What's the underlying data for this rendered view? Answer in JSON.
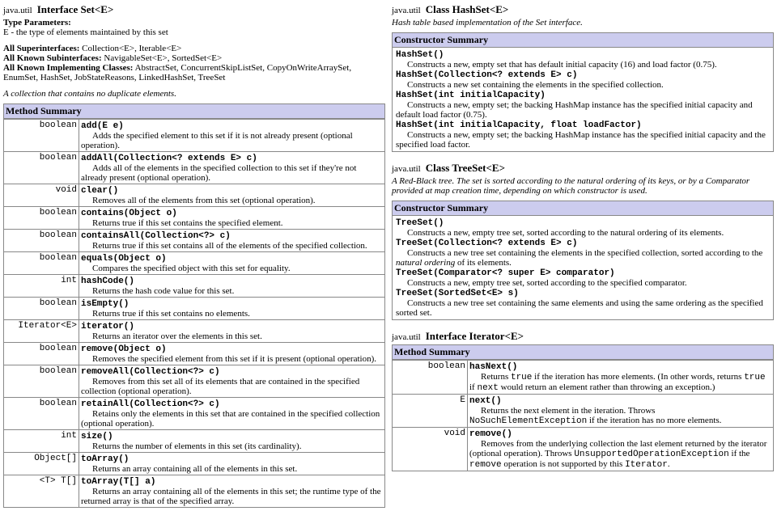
{
  "left": {
    "pkg": "java.util",
    "kind": "Interface",
    "name": "Set<E>",
    "typeParamsHead": "Type Parameters:",
    "typeParams": "E - the type of elements maintained by this set",
    "superHead": "All Superinterfaces:",
    "superVal": "Collection<E>, Iterable<E>",
    "subHead": "All Known Subinterfaces:",
    "subVal": "NavigableSet<E>, SortedSet<E>",
    "implHead": "All Known Implementing Classes:",
    "implVal": "AbstractSet, ConcurrentSkipListSet, CopyOnWriteArraySet, EnumSet, HashSet, JobStateReasons, LinkedHashSet, TreeSet",
    "desc": "A collection that contains no duplicate elements.",
    "methodTitle": "Method Summary",
    "methods": [
      {
        "ret": "boolean",
        "sig": "add(E e)",
        "desc": "Adds the specified element to this set if it is not already present (optional operation)."
      },
      {
        "ret": "boolean",
        "sig": "addAll(Collection<? extends E> c)",
        "desc": "Adds all of the elements in the specified collection to this set if they're not already present (optional operation)."
      },
      {
        "ret": "void",
        "sig": "clear()",
        "desc": "Removes all of the elements from this set (optional operation)."
      },
      {
        "ret": "boolean",
        "sig": "contains(Object o)",
        "desc": "Returns true if this set contains the specified element."
      },
      {
        "ret": "boolean",
        "sig": "containsAll(Collection<?> c)",
        "desc": "Returns true if this set contains all of the elements of the specified collection."
      },
      {
        "ret": "boolean",
        "sig": "equals(Object o)",
        "desc": "Compares the specified object with this set for equality."
      },
      {
        "ret": "int",
        "sig": "hashCode()",
        "desc": "Returns the hash code value for this set."
      },
      {
        "ret": "boolean",
        "sig": "isEmpty()",
        "desc": "Returns true if this set contains no elements."
      },
      {
        "ret": "Iterator<E>",
        "sig": "iterator()",
        "desc": "Returns an iterator over the elements in this set."
      },
      {
        "ret": "boolean",
        "sig": "remove(Object o)",
        "desc": "Removes the specified element from this set if it is present (optional operation)."
      },
      {
        "ret": "boolean",
        "sig": "removeAll(Collection<?> c)",
        "desc": "Removes from this set all of its elements that are contained in the specified collection (optional operation)."
      },
      {
        "ret": "boolean",
        "sig": "retainAll(Collection<?> c)",
        "desc": "Retains only the elements in this set that are contained in the specified collection (optional operation)."
      },
      {
        "ret": "int",
        "sig": "size()",
        "desc": "Returns the number of elements in this set (its cardinality)."
      },
      {
        "ret": "Object[]",
        "sig": "toArray()",
        "desc": "Returns an array containing all of the elements in this set."
      },
      {
        "ret": "<T> T[]",
        "sig": "toArray(T[] a)",
        "desc": "Returns an array containing all of the elements in this set; the runtime type of the returned array is that of the specified array."
      }
    ]
  },
  "hashset": {
    "pkg": "java.util",
    "kind": "Class",
    "name": "HashSet<E>",
    "desc": "Hash table based implementation of the Set interface.",
    "ctorTitle": "Constructor Summary",
    "ctors": [
      {
        "sig": "HashSet()",
        "desc": "Constructs a new, empty set that has default initial capacity (16) and load factor (0.75)."
      },
      {
        "sig": "HashSet(Collection<? extends E> c)",
        "desc": "Constructs a new set containing the elements in the specified collection."
      },
      {
        "sig": "HashSet(int initialCapacity)",
        "desc": "Constructs a new, empty set; the backing HashMap instance has the specified initial capacity and default load factor (0.75)."
      },
      {
        "sig": "HashSet(int initialCapacity, float loadFactor)",
        "desc": "Constructs a new, empty set; the backing HashMap instance has the specified initial capacity and the specified load factor."
      }
    ]
  },
  "treeset": {
    "pkg": "java.util",
    "kind": "Class",
    "name": "TreeSet<E>",
    "desc": "A Red-Black tree. The set is sorted according to the natural ordering of its keys, or by a Comparator provided at map creation time, depending on which constructor is used.",
    "ctorTitle": "Constructor Summary",
    "ctors": [
      {
        "sig": "TreeSet()",
        "desc": "Constructs a new, empty tree set, sorted according to the natural ordering of its elements."
      },
      {
        "sig": "TreeSet(Collection<? extends E> c)",
        "desc": "Constructs a new tree set containing the elements in the specified collection, sorted according to the <i>natural ordering</i> of its elements."
      },
      {
        "sig": "TreeSet(Comparator<? super E> comparator)",
        "desc": "Constructs a new, empty tree set, sorted according to the specified comparator."
      },
      {
        "sig": "TreeSet(SortedSet<E> s)",
        "desc": "Constructs a new tree set containing the same elements and using the same ordering as the specified sorted set."
      }
    ]
  },
  "iterator": {
    "pkg": "java.util",
    "kind": "Interface",
    "name": "Iterator<E>",
    "methodTitle": "Method Summary",
    "methods": [
      {
        "ret": "boolean",
        "sig": "hasNext()",
        "desc": "Returns <span class=\"mono\">true</span> if the iteration has more elements. (In other words, returns <span class=\"mono\">true</span> if <span class=\"mono\">next</span> would return an element rather than throwing an exception.)"
      },
      {
        "ret": "E",
        "sig": "next()",
        "desc": "Returns the next element in the iteration. Throws <span class=\"mono\">NoSuchElementException</span> if the iteration has no more elements."
      },
      {
        "ret": "void",
        "sig": "remove()",
        "desc": "Removes from the underlying collection the last element returned by the iterator (optional operation). Throws <span class=\"mono\">UnsupportedOperationException</span> if the <span class=\"mono\">remove</span> operation is not supported by this <span class=\"mono\">Iterator</span>."
      }
    ]
  }
}
